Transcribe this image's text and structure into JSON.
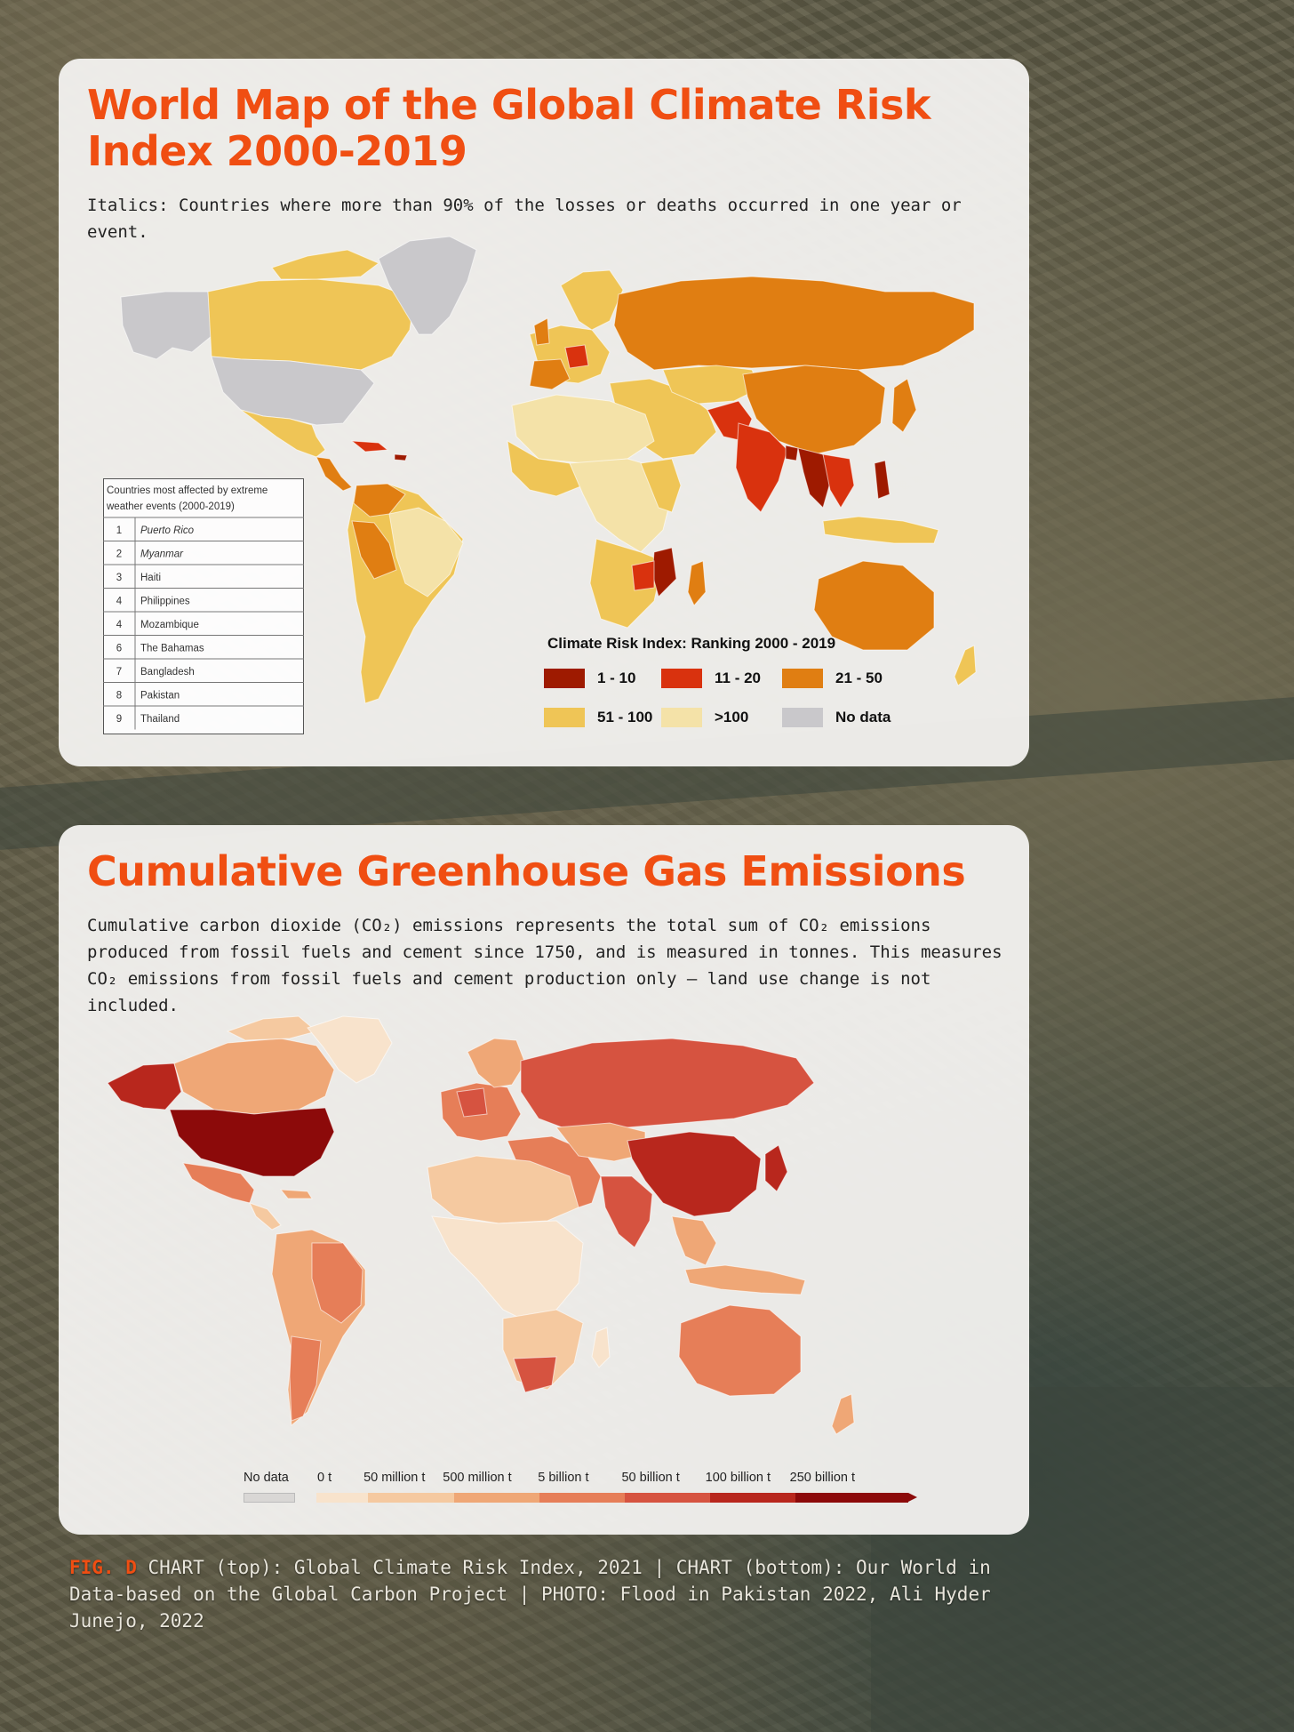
{
  "colors": {
    "accent": "#f04e12",
    "risk": {
      "r1_10": "#9e1a00",
      "r11_20": "#d9320e",
      "r21_50": "#e07e12",
      "r51_100": "#efc556",
      "r100plus": "#f4e2a8",
      "no_data": "#c9c8cb"
    },
    "emissions_scale": [
      "#f8e3cc",
      "#f5c9a0",
      "#efa776",
      "#e67e58",
      "#d65340",
      "#b8271d",
      "#8c0a0a"
    ]
  },
  "map1": {
    "title": "World Map of the Global Climate Risk Index 2000-2019",
    "description": "Italics: Countries where more than 90% of the losses or deaths occurred in one year or event.",
    "table": {
      "header": "Countries most affected by extreme weather events (2000-2019)",
      "rows": [
        {
          "rank": "1",
          "country": "Puerto Rico"
        },
        {
          "rank": "2",
          "country": "Myanmar"
        },
        {
          "rank": "3",
          "country": "Haiti"
        },
        {
          "rank": "4",
          "country": "Philippines"
        },
        {
          "rank": "4",
          "country": "Mozambique"
        },
        {
          "rank": "6",
          "country": "The Bahamas"
        },
        {
          "rank": "7",
          "country": "Bangladesh"
        },
        {
          "rank": "8",
          "country": "Pakistan"
        },
        {
          "rank": "9",
          "country": "Thailand"
        }
      ]
    },
    "legend": {
      "title": "Climate Risk Index: Ranking 2000 - 2019",
      "items": [
        "1 - 10",
        "11 - 20",
        "21 - 50",
        "51 - 100",
        ">100",
        "No data"
      ]
    }
  },
  "map2": {
    "title": "Cumulative Greenhouse Gas Emissions",
    "description": "Cumulative carbon dioxide (CO₂) emissions represents the total sum of CO₂ emissions produced from fossil fuels and cement since 1750, and is measured in tonnes. This measures CO₂ emissions from fossil fuels and cement production only – land use change is not included.",
    "legend": {
      "no_data": "No data",
      "ticks": [
        "0 t",
        "50 million t",
        "500 million t",
        "5 billion t",
        "50 billion t",
        "100 billion t",
        "250 billion t"
      ]
    }
  },
  "caption": {
    "fig": "FIG. D",
    "text": "CHART (top): Global Climate Risk Index, 2021 | CHART (bottom): Our World in Data-based on the Global Carbon Project | PHOTO: Flood in Pakistan 2022, Ali Hyder Junejo, 2022"
  }
}
